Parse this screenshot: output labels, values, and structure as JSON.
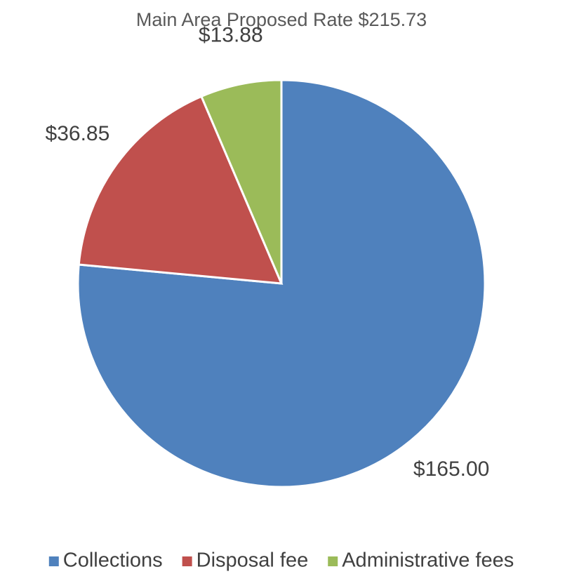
{
  "chart_data": {
    "type": "pie",
    "title": "Main Area Proposed Rate $215.73",
    "categories": [
      "Collections",
      "Disposal fee",
      "Administrative fees"
    ],
    "values": [
      165.0,
      36.85,
      13.88
    ],
    "value_labels": [
      "$165.00",
      "$36.85",
      "$13.88"
    ],
    "colors": [
      "#4f81bd",
      "#c0504d",
      "#9bbb59"
    ],
    "legend": "bottom"
  }
}
